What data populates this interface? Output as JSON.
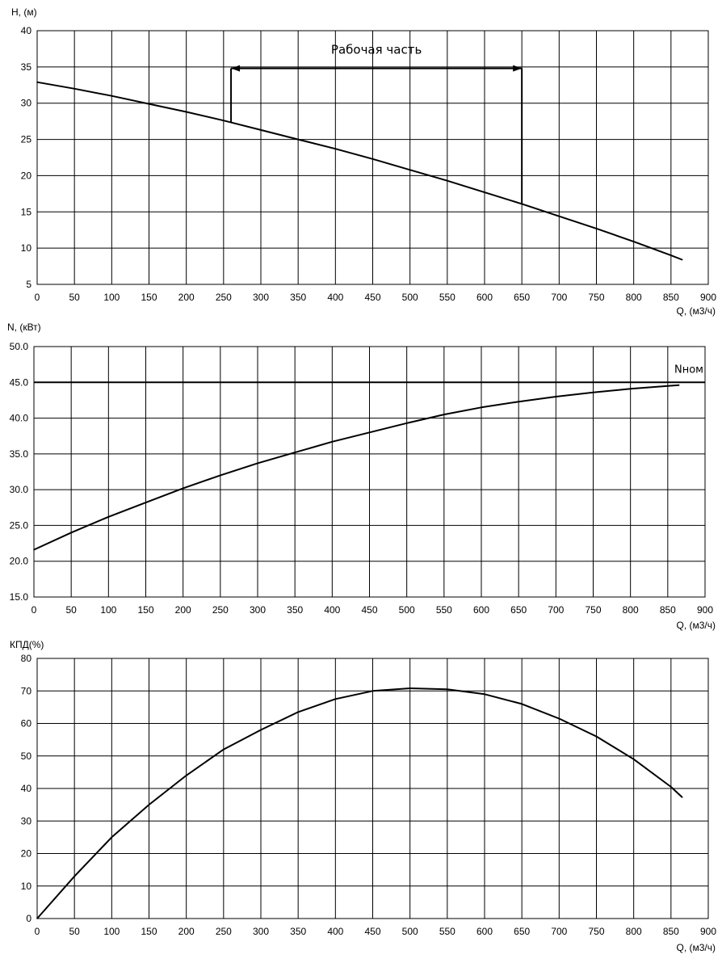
{
  "chart_data": [
    {
      "type": "line",
      "ylabel": "H, (м)",
      "xlabel": "Q, (м3/ч)",
      "xlim": [
        0,
        900
      ],
      "ylim": [
        5,
        40
      ],
      "xticks": [
        0,
        50,
        100,
        150,
        200,
        250,
        300,
        350,
        400,
        450,
        500,
        550,
        600,
        650,
        700,
        750,
        800,
        850,
        900
      ],
      "xtick_labels": [
        "0",
        "50",
        "100",
        "150",
        "200",
        "250",
        "300",
        "350",
        "400",
        "450",
        "500",
        "550",
        "600",
        "650",
        "700",
        "750",
        "800",
        "850",
        "900"
      ],
      "yticks": [
        5,
        10,
        15,
        20,
        25,
        30,
        35,
        40
      ],
      "ytick_labels": [
        "5",
        "10",
        "15",
        "20",
        "25",
        "30",
        "35",
        "40"
      ],
      "grid": true,
      "series": [
        {
          "x": [
            0,
            50,
            100,
            150,
            200,
            250,
            300,
            350,
            400,
            450,
            500,
            550,
            600,
            650,
            700,
            750,
            800,
            850,
            865
          ],
          "values": [
            32.9,
            32.0,
            31.0,
            29.9,
            28.8,
            27.6,
            26.3,
            25.0,
            23.7,
            22.3,
            20.8,
            19.3,
            17.7,
            16.1,
            14.4,
            12.7,
            10.9,
            9.0,
            8.4
          ]
        }
      ],
      "annotations": [
        {
          "text": "Рабочая часть",
          "arrow_from": 260,
          "arrow_to": 650,
          "arrow_level": 34.8,
          "left_drop_to": 27.4,
          "right_drop_to": 16.1
        }
      ]
    },
    {
      "type": "line",
      "ylabel": "N, (кВт)",
      "xlabel": "Q, (м3/ч)",
      "xlim": [
        0,
        900
      ],
      "ylim": [
        15,
        50
      ],
      "xticks": [
        0,
        50,
        100,
        150,
        200,
        250,
        300,
        350,
        400,
        450,
        500,
        550,
        600,
        650,
        700,
        750,
        800,
        850,
        900
      ],
      "xtick_labels": [
        "0",
        "50",
        "100",
        "150",
        "200",
        "250",
        "300",
        "350",
        "400",
        "450",
        "500",
        "550",
        "600",
        "650",
        "700",
        "750",
        "800",
        "850",
        "900"
      ],
      "yticks": [
        15,
        20,
        25,
        30,
        35,
        40,
        45,
        50
      ],
      "ytick_labels": [
        "15.0",
        "20.0",
        "25.0",
        "30.0",
        "35.0",
        "40.0",
        "45.0",
        "50.0"
      ],
      "grid": true,
      "series": [
        {
          "x": [
            0,
            50,
            100,
            150,
            200,
            250,
            300,
            350,
            400,
            450,
            500,
            550,
            600,
            650,
            700,
            750,
            800,
            850,
            865
          ],
          "values": [
            21.6,
            24.0,
            26.2,
            28.2,
            30.2,
            32.0,
            33.7,
            35.2,
            36.7,
            38.0,
            39.3,
            40.5,
            41.5,
            42.3,
            43.0,
            43.6,
            44.1,
            44.5,
            44.6
          ]
        }
      ],
      "reference_lines": [
        {
          "label": "Nном",
          "y": 45.0
        }
      ]
    },
    {
      "type": "line",
      "ylabel": "КПД(%)",
      "xlabel": "Q, (м3/ч)",
      "xlim": [
        0,
        900
      ],
      "ylim": [
        0,
        80
      ],
      "xticks": [
        0,
        50,
        100,
        150,
        200,
        250,
        300,
        350,
        400,
        450,
        500,
        550,
        600,
        650,
        700,
        750,
        800,
        850,
        900
      ],
      "xtick_labels": [
        "0",
        "50",
        "100",
        "150",
        "200",
        "250",
        "300",
        "350",
        "400",
        "450",
        "500",
        "550",
        "600",
        "650",
        "700",
        "750",
        "800",
        "850",
        "900"
      ],
      "yticks": [
        0,
        10,
        20,
        30,
        40,
        50,
        60,
        70,
        80
      ],
      "ytick_labels": [
        "0",
        "10",
        "20",
        "30",
        "40",
        "50",
        "60",
        "70",
        "80"
      ],
      "grid": true,
      "series": [
        {
          "x": [
            0,
            50,
            100,
            150,
            200,
            250,
            300,
            350,
            400,
            450,
            500,
            550,
            600,
            650,
            700,
            750,
            800,
            850,
            865
          ],
          "values": [
            0,
            13.0,
            25.0,
            35.0,
            44.0,
            52.0,
            58.0,
            63.5,
            67.5,
            70.0,
            70.8,
            70.5,
            69.0,
            66.0,
            61.5,
            56.0,
            49.0,
            40.5,
            37.3
          ]
        }
      ]
    }
  ]
}
